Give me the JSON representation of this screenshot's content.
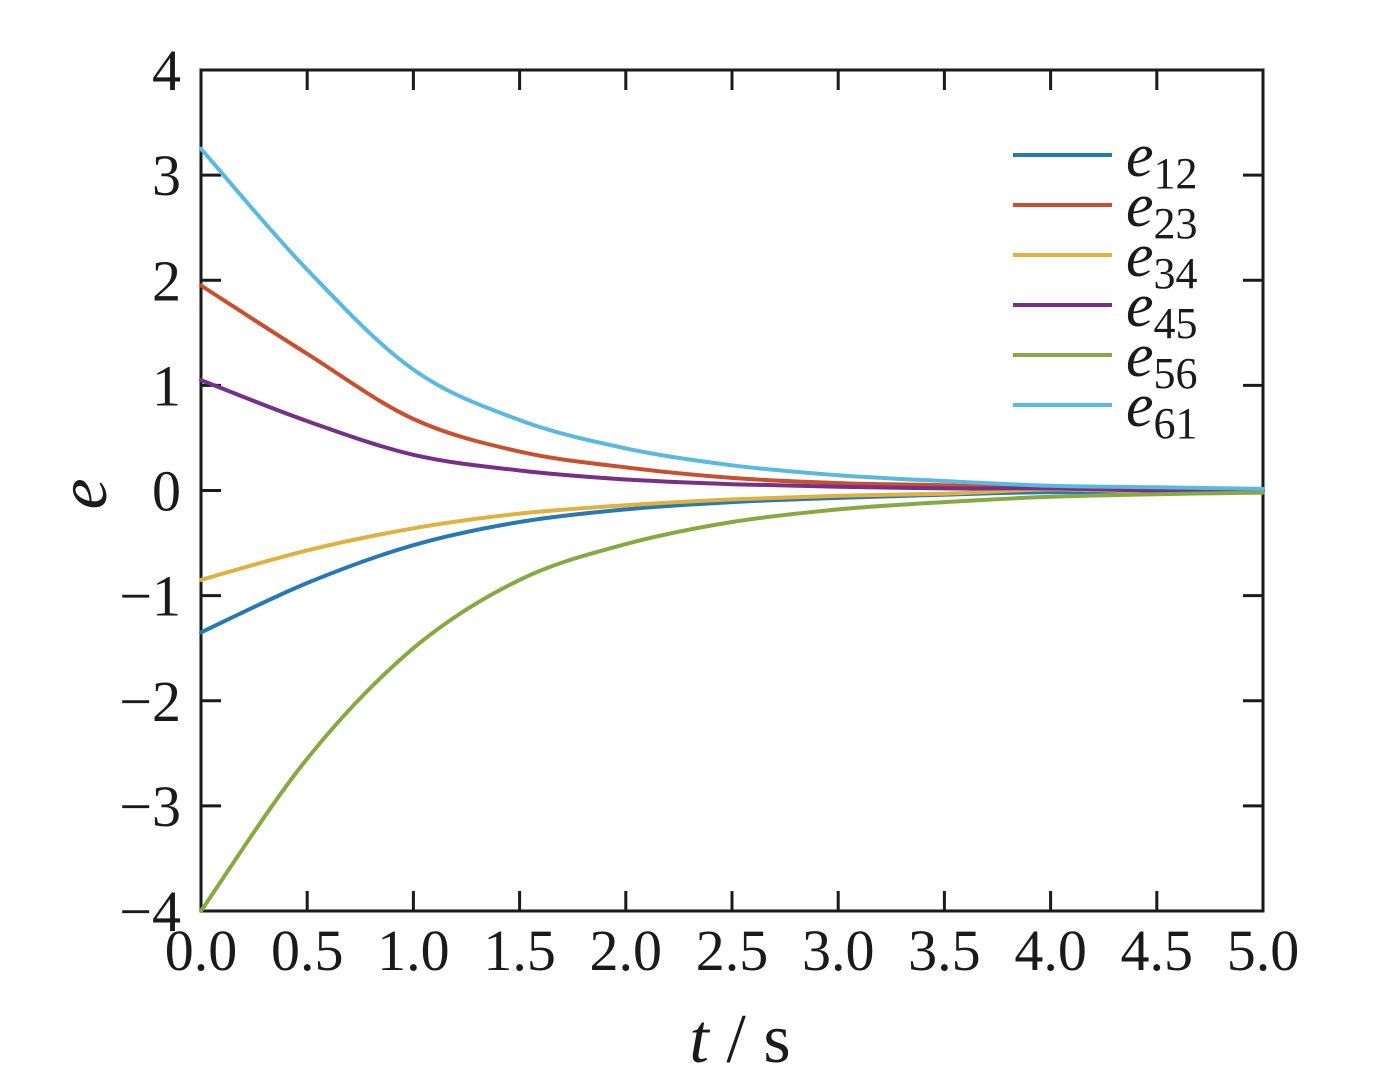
{
  "figure": {
    "background": "#ffffff",
    "axis_color": "#1a1a1a"
  },
  "chart_data": {
    "type": "line",
    "title": "",
    "xlabel": "t / s",
    "xlabel_parts": {
      "symbol": "t",
      "separator": " / ",
      "unit": "s"
    },
    "ylabel": "e",
    "xlim": [
      0,
      5
    ],
    "ylim": [
      -4,
      4
    ],
    "grid": false,
    "legend_position": "upper right",
    "x_tick_values": [
      0,
      0.5,
      1,
      1.5,
      2,
      2.5,
      3,
      3.5,
      4,
      4.5,
      5
    ],
    "x_tick_labels": [
      "0.0",
      "0.5",
      "1.0",
      "1.5",
      "2.0",
      "2.5",
      "3.0",
      "3.5",
      "4.0",
      "4.5",
      "5.0"
    ],
    "y_tick_values": [
      4,
      3,
      2,
      1,
      0,
      -1,
      -2,
      -3,
      -4
    ],
    "y_tick_labels": [
      "4",
      "3",
      "2",
      "1",
      "0",
      "−1",
      "−2",
      "−3",
      "−4"
    ],
    "x": [
      0,
      0.5,
      1,
      1.5,
      2,
      2.5,
      3,
      3.5,
      4,
      4.5,
      5
    ],
    "series": [
      {
        "name": "e12",
        "label_base": "e",
        "label_sub": "12",
        "color": "#2878b4",
        "values": [
          -1.35,
          -0.88,
          -0.52,
          -0.3,
          -0.18,
          -0.11,
          -0.07,
          -0.04,
          -0.015,
          -0.025,
          -0.015
        ]
      },
      {
        "name": "e23",
        "label_base": "e",
        "label_sub": "23",
        "color": "#c8502e",
        "values": [
          1.95,
          1.3,
          0.68,
          0.37,
          0.22,
          0.12,
          0.07,
          0.05,
          0.02,
          0.025,
          0.012
        ]
      },
      {
        "name": "e34",
        "label_base": "e",
        "label_sub": "34",
        "color": "#deb140",
        "values": [
          -0.85,
          -0.57,
          -0.36,
          -0.22,
          -0.14,
          -0.085,
          -0.05,
          -0.03,
          0.01,
          -0.01,
          -0.006
        ]
      },
      {
        "name": "e45",
        "label_base": "e",
        "label_sub": "45",
        "color": "#772f87",
        "values": [
          1.05,
          0.66,
          0.34,
          0.19,
          0.105,
          0.06,
          0.035,
          0.02,
          0.02,
          0.0,
          0.006
        ]
      },
      {
        "name": "e56",
        "label_base": "e",
        "label_sub": "56",
        "color": "#87a943",
        "values": [
          -4.0,
          -2.55,
          -1.5,
          -0.85,
          -0.51,
          -0.3,
          -0.18,
          -0.11,
          -0.06,
          -0.035,
          -0.02
        ]
      },
      {
        "name": "e61",
        "label_base": "e",
        "label_sub": "61",
        "color": "#5bb8e0",
        "values": [
          3.25,
          2.1,
          1.15,
          0.67,
          0.4,
          0.24,
          0.145,
          0.09,
          0.045,
          0.03,
          0.015
        ]
      }
    ]
  }
}
